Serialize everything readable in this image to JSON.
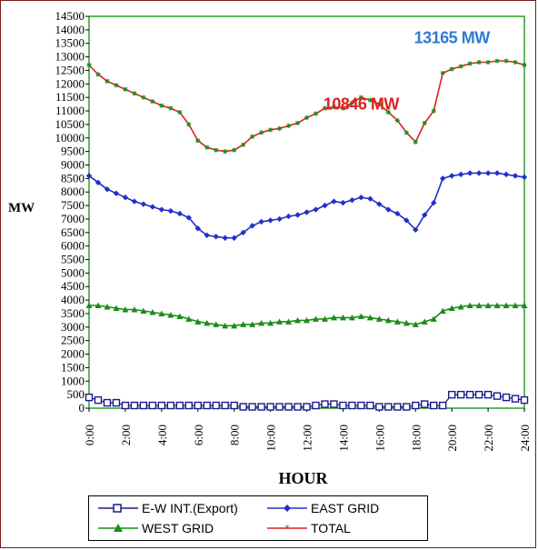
{
  "chart_data": {
    "type": "line",
    "xlabel": "HOUR",
    "ylabel": "MW",
    "xlim": [
      0,
      24
    ],
    "ylim": [
      0,
      14500
    ],
    "y_ticks": [
      0,
      500,
      1000,
      1500,
      2000,
      2500,
      3000,
      3500,
      4000,
      4500,
      5000,
      5500,
      6000,
      6500,
      7000,
      7500,
      8000,
      8500,
      9000,
      9500,
      10000,
      10500,
      11000,
      11500,
      12000,
      12500,
      13000,
      13500,
      14000,
      14500
    ],
    "y_tick_labels": [
      "0",
      "500",
      "1000",
      "1500",
      "2000",
      "2500",
      "3000",
      "3500",
      "4000",
      "4500",
      "5000",
      "5500",
      "6000",
      "6500",
      "7000",
      "7500",
      "8000",
      "8500",
      "9000",
      "9500",
      "10000",
      "10500",
      "11000",
      "11500",
      "12000",
      "12500",
      "13000",
      "13500",
      "14000",
      "14500"
    ],
    "x_ticks": [
      0,
      2,
      4,
      6,
      8,
      10,
      12,
      14,
      16,
      18,
      20,
      22,
      24
    ],
    "x_tick_labels": [
      "0:00",
      "2:00",
      "4:00",
      "6:00",
      "8:00",
      "10:00",
      "12:00",
      "14:00",
      "16:00",
      "18:00",
      "20:00",
      "22:00",
      "24:00"
    ],
    "x": [
      0,
      0.5,
      1,
      1.5,
      2,
      2.5,
      3,
      3.5,
      4,
      4.5,
      5,
      5.5,
      6,
      6.5,
      7,
      7.5,
      8,
      8.5,
      9,
      9.5,
      10,
      10.5,
      11,
      11.5,
      12,
      12.5,
      13,
      13.5,
      14,
      14.5,
      15,
      15.5,
      16,
      16.5,
      17,
      17.5,
      18,
      18.5,
      19,
      19.5,
      20,
      20.5,
      21,
      21.5,
      22,
      22.5,
      23,
      23.5,
      24
    ],
    "series": [
      {
        "name": "E-W INT.(Export)",
        "color": "#1a1a8c",
        "marker": "open-square",
        "values": [
          400,
          300,
          200,
          200,
          100,
          100,
          100,
          100,
          100,
          100,
          100,
          100,
          100,
          100,
          100,
          100,
          100,
          50,
          50,
          50,
          50,
          50,
          50,
          50,
          50,
          100,
          150,
          150,
          100,
          100,
          100,
          100,
          50,
          50,
          50,
          50,
          100,
          150,
          100,
          100,
          500,
          500,
          500,
          500,
          500,
          450,
          400,
          350,
          300
        ]
      },
      {
        "name": "EAST GRID",
        "color": "#2030c8",
        "marker": "diamond",
        "values": [
          8600,
          8350,
          8100,
          7950,
          7800,
          7650,
          7550,
          7450,
          7350,
          7300,
          7200,
          7050,
          6650,
          6400,
          6350,
          6300,
          6300,
          6500,
          6750,
          6900,
          6950,
          7000,
          7100,
          7150,
          7250,
          7350,
          7500,
          7650,
          7600,
          7700,
          7800,
          7750,
          7550,
          7350,
          7200,
          6950,
          6600,
          7150,
          7600,
          8500,
          8600,
          8650,
          8700,
          8700,
          8700,
          8700,
          8650,
          8600,
          8550
        ]
      },
      {
        "name": "WEST GRID",
        "color": "#1a8c1a",
        "marker": "triangle",
        "values": [
          3800,
          3800,
          3750,
          3700,
          3650,
          3650,
          3600,
          3550,
          3500,
          3450,
          3400,
          3300,
          3200,
          3150,
          3100,
          3050,
          3050,
          3100,
          3100,
          3150,
          3150,
          3200,
          3200,
          3250,
          3250,
          3300,
          3300,
          3350,
          3350,
          3350,
          3400,
          3350,
          3300,
          3250,
          3200,
          3150,
          3100,
          3200,
          3300,
          3600,
          3700,
          3750,
          3800,
          3800,
          3800,
          3800,
          3800,
          3800,
          3800
        ]
      },
      {
        "name": "TOTAL",
        "color": "#e02020",
        "marker": "star",
        "values": [
          12700,
          12350,
          12100,
          11950,
          11800,
          11650,
          11500,
          11350,
          11200,
          11100,
          10950,
          10500,
          9900,
          9650,
          9550,
          9500,
          9550,
          9750,
          10050,
          10200,
          10300,
          10350,
          10450,
          10550,
          10750,
          10900,
          11100,
          11150,
          11100,
          11300,
          11500,
          11400,
          11250,
          10950,
          10650,
          10200,
          9850,
          10550,
          11000,
          12400,
          12550,
          12650,
          12750,
          12800,
          12800,
          12850,
          12850,
          12800,
          12700
        ]
      }
    ],
    "annotations": [
      {
        "text": "10846 MW",
        "color": "#e02020",
        "x": 15,
        "y": 11050
      },
      {
        "text": "13165 MW",
        "color": "#2e7bd0",
        "x": 20,
        "y": 13500
      }
    ],
    "legend_position": "bottom",
    "grid": false
  }
}
